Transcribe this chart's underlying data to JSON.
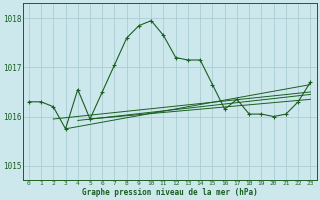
{
  "title": "Graphe pression niveau de la mer (hPa)",
  "bg_color": "#cce8ec",
  "grid_color": "#aacdd4",
  "line_color": "#1a5e20",
  "text_color": "#1a5e20",
  "xlim": [
    -0.5,
    23.5
  ],
  "ylim": [
    1014.7,
    1018.3
  ],
  "yticks": [
    1015,
    1016,
    1017,
    1018
  ],
  "xticks": [
    0,
    1,
    2,
    3,
    4,
    5,
    6,
    7,
    8,
    9,
    10,
    11,
    12,
    13,
    14,
    15,
    16,
    17,
    18,
    19,
    20,
    21,
    22,
    23
  ],
  "main_line": {
    "x": [
      0,
      1,
      2,
      3,
      4,
      5,
      6,
      7,
      8,
      9,
      10,
      11,
      12,
      13,
      14,
      15,
      16,
      17,
      18,
      19,
      20,
      21,
      22,
      23
    ],
    "y": [
      1016.3,
      1016.3,
      1016.2,
      1015.75,
      1016.55,
      1015.95,
      1016.5,
      1017.05,
      1017.6,
      1017.85,
      1017.95,
      1017.65,
      1017.2,
      1017.15,
      1017.15,
      1016.65,
      1016.15,
      1016.35,
      1016.05,
      1016.05,
      1016.0,
      1016.05,
      1016.3,
      1016.7
    ]
  },
  "trend_line1": {
    "x": [
      2,
      23
    ],
    "y": [
      1015.95,
      1016.5
    ]
  },
  "trend_line2": {
    "x": [
      3,
      23
    ],
    "y": [
      1015.75,
      1016.65
    ]
  },
  "trend_line3": {
    "x": [
      4,
      23
    ],
    "y": [
      1015.92,
      1016.45
    ]
  },
  "trend_line4": {
    "x": [
      5,
      23
    ],
    "y": [
      1015.95,
      1016.35
    ]
  }
}
